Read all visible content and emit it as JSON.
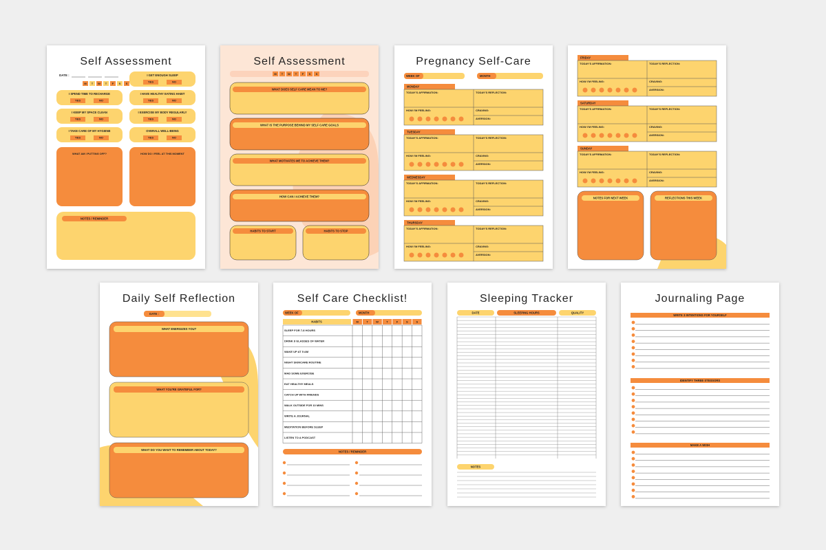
{
  "pages": [
    {
      "title": "Self Assessment",
      "date_label": "DATE :",
      "days": [
        "M",
        "T",
        "W",
        "T",
        "F",
        "S",
        "S"
      ],
      "questions_left": [
        "I SPEND TIME TO RECHARGE",
        "I KEEP MY SPACE CLEAN",
        "I TAKE CARE OF MY HYGIENE"
      ],
      "questions_right": [
        "I GET ENOUGH SLEEP",
        "I HAVE HEALTHY EATING HABIT",
        "I EXERCISE MY BODY REGULARLY",
        "OVERALL WELL-BEING"
      ],
      "yes": "YES",
      "no": "NO",
      "box_prompts": [
        "WHAT AM I PUTTING OFF?",
        "HOW DO I FEEL AT THIS MOMENT"
      ],
      "notes_label": "NOTES / REMINDER"
    },
    {
      "title": "Self Assessment",
      "days": [
        "M",
        "T",
        "W",
        "T",
        "F",
        "S",
        "S"
      ],
      "prompts": [
        "WHAT DOES SELF CARE MEAN TO ME?",
        "WHAT IS THE PURPOSE BEHIND MY SELF CARE GOALS",
        "WHAT MOTIVATES ME TO ACHIEVE THEM?",
        "HOW CAN I ACHIEVE THEM?"
      ],
      "habits_start": "HABITS TO START",
      "habits_stop": "HABITS TO STOP"
    },
    {
      "title": "Pregnancy Self-Care",
      "week_of": "WEEK OF",
      "month": "MONTH",
      "days": [
        "MONDAY",
        "TUESDAY",
        "WEDNESDAY",
        "THURSDAY"
      ],
      "labels": {
        "affirmation": "TODAY'S AFFIRMATION:",
        "reflection": "TODAY'S REFLECTION:",
        "feeling": "HOW I'M FEELING:",
        "craving": "CRAVING:",
        "aversion": "AVERSION:"
      }
    },
    {
      "days": [
        "FRIDAY",
        "SATURDAY",
        "SUNDAY"
      ],
      "labels": {
        "affirmation": "TODAY'S AFFIRMATION:",
        "reflection": "TODAY'S REFLECTION:",
        "feeling": "HOW I'M FEELING:",
        "craving": "CRAVING:",
        "aversion": "AVERSION:"
      },
      "notes_next_week": "NOTES FOR NEXT WEEK",
      "reflections_week": "REFLECTIONS THIS WEEK"
    },
    {
      "title": "Daily Self Reflection",
      "date_label": "DATE :",
      "prompts": [
        "WHAT ENERGIZES YOU?",
        "WHAT YOU'RE GRATEFUL FOR?",
        "WHAT DO YOU WANT TO REMEMBER ABOUT TODAY?"
      ]
    },
    {
      "title": "Self Care Checklist!",
      "week_of": "WEEK OF",
      "month": "MONTH",
      "habits_label": "HABITS",
      "days": [
        "M",
        "T",
        "W",
        "T",
        "F",
        "S",
        "S"
      ],
      "habits": [
        "SLEEP FOR 7-8 HOURS",
        "DRINK 8 GLASSES OF WATER",
        "WAKE UP AT 5 AM",
        "NIGHT SKINCARE ROUTINE",
        "MAD SOME EXERCISE",
        "EAT HEALTHY MEALS",
        "CATCH UP WITH FRIENDS",
        "WALK OUTSIDE FOR 10 MINS",
        "WRITE A JOURNAL",
        "MEDITATION BEFORE SLEEP",
        "LISTEN TO A PODCAST"
      ],
      "notes_label": "NOTES / REMINDER"
    },
    {
      "title": "Sleeping Tracker",
      "columns": [
        "DATE",
        "SLEEPING HOURS",
        "QUALITY"
      ],
      "notes_label": "NOTES"
    },
    {
      "title": "Journaling Page",
      "sections": [
        "WRITE 3 INTENTIONS FOR YOURSELF",
        "IDENTIFY THREE STESSORS",
        "MAKE A WISH"
      ]
    }
  ]
}
